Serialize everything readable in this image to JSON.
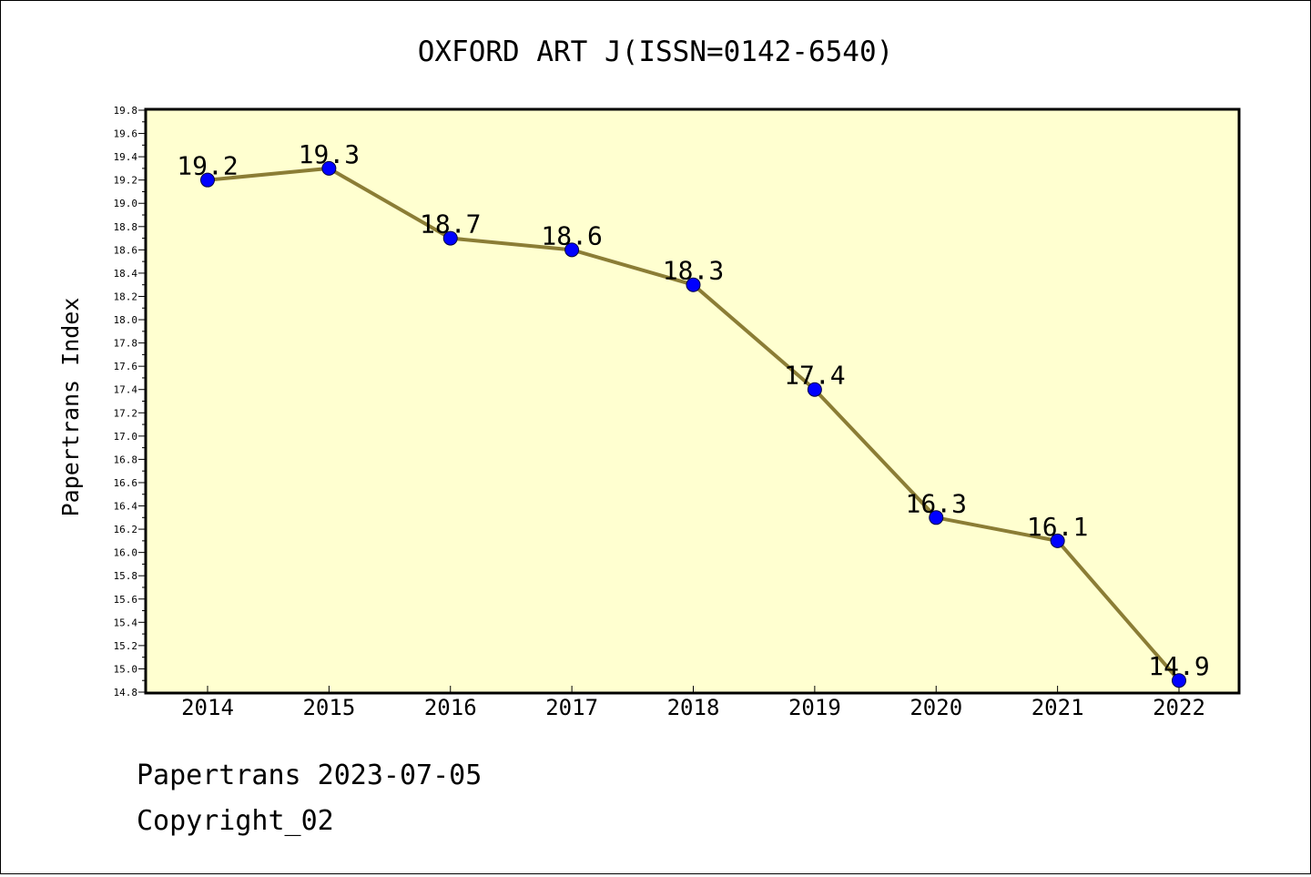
{
  "chart_data": {
    "type": "line",
    "title": "OXFORD ART J(ISSN=0142-6540)",
    "ylabel": "Papertrans Index",
    "xlabel": "",
    "categories": [
      "2014",
      "2015",
      "2016",
      "2017",
      "2018",
      "2019",
      "2020",
      "2021",
      "2022"
    ],
    "values": [
      19.2,
      19.3,
      18.7,
      18.6,
      18.3,
      17.4,
      16.3,
      16.1,
      14.9
    ],
    "data_labels": [
      "19.2",
      "19.3",
      "18.7",
      "18.6",
      "18.3",
      "17.4",
      "16.3",
      "16.1",
      "14.9"
    ],
    "ylim": [
      14.8,
      19.8
    ],
    "yticks": [
      "14.8",
      "15.0",
      "15.2",
      "15.4",
      "15.6",
      "15.8",
      "16.0",
      "16.2",
      "16.4",
      "16.6",
      "16.8",
      "17.0",
      "17.2",
      "17.4",
      "17.6",
      "17.8",
      "18.0",
      "18.2",
      "18.4",
      "18.6",
      "18.8",
      "19.0",
      "19.2",
      "19.4",
      "19.6",
      "19.8"
    ],
    "grid": false,
    "legend": "none",
    "colors": {
      "plot_background": "#ffffd0",
      "line": "#8b7d35",
      "marker": "#0000ff",
      "axis": "#000000"
    }
  },
  "footer": {
    "line1": "Papertrans 2023-07-05",
    "line2": "Copyright_02"
  }
}
